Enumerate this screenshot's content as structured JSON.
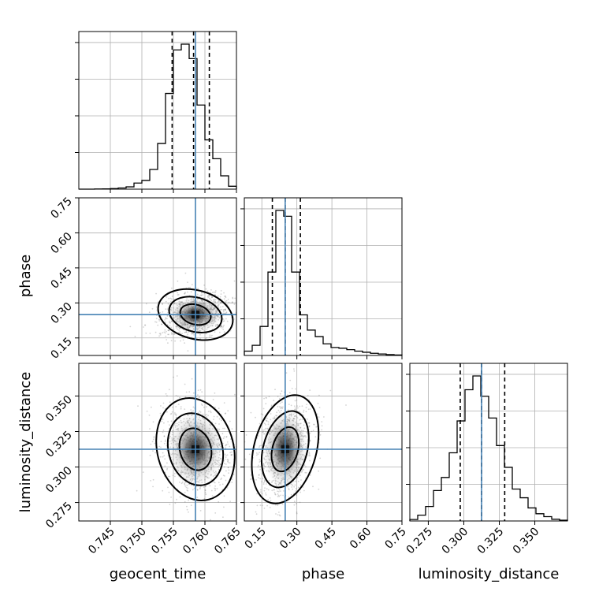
{
  "chart_data": {
    "type": "corner",
    "parameters": [
      "geocent_time",
      "phase",
      "luminosity_distance"
    ],
    "truth": {
      "geocent_time": 0.7585,
      "phase": 0.25,
      "luminosity_distance": 0.3125
    },
    "quantiles": {
      "geocent_time": [
        0.7548,
        0.7582,
        0.7607
      ],
      "phase": [
        0.195,
        0.25,
        0.315
      ],
      "luminosity_distance": [
        0.2975,
        0.3125,
        0.3288
      ]
    },
    "ranges": {
      "geocent_time": [
        0.74,
        0.765
      ],
      "phase": [
        0.075,
        0.75
      ],
      "luminosity_distance": [
        0.262,
        0.373
      ]
    },
    "ticks": {
      "geocent_time": [
        "0.745",
        "0.750",
        "0.755",
        "0.760",
        "0.765"
      ],
      "phase": [
        "0.15",
        "0.30",
        "0.45",
        "0.60",
        "0.75"
      ],
      "luminosity_distance": [
        "0.275",
        "0.300",
        "0.325",
        "0.350"
      ]
    },
    "phase_y_ticks": [
      "0.15",
      "0.30",
      "0.45",
      "0.60",
      "0.75"
    ],
    "ld_y_ticks": [
      "0.275",
      "0.300",
      "0.325",
      "0.350"
    ],
    "hist_1d": {
      "geocent_time": {
        "edges": [
          0.74,
          0.74125,
          0.7425,
          0.74375,
          0.745,
          0.74625,
          0.7475,
          0.74875,
          0.75,
          0.75125,
          0.7525,
          0.75375,
          0.755,
          0.75625,
          0.7575,
          0.75875,
          0.76,
          0.76125,
          0.7625,
          0.76375,
          0.765
        ],
        "counts": [
          0,
          0,
          1,
          2,
          4,
          8,
          16,
          42,
          60,
          136,
          315,
          660,
          960,
          1000,
          900,
          580,
          340,
          210,
          92,
          20
        ]
      },
      "phase": {
        "edges": [
          0.075,
          0.10875,
          0.1425,
          0.17625,
          0.21,
          0.24375,
          0.2775,
          0.31125,
          0.345,
          0.37875,
          0.4125,
          0.44625,
          0.48,
          0.51375,
          0.5475,
          0.58125,
          0.615,
          0.64875,
          0.6825,
          0.71625,
          0.75
        ],
        "counts": [
          30,
          70,
          200,
          575,
          1000,
          960,
          575,
          280,
          175,
          130,
          80,
          55,
          50,
          40,
          30,
          22,
          15,
          10,
          6,
          3
        ]
      },
      "luminosity_distance": {
        "edges": [
          0.262,
          0.26755,
          0.2731,
          0.27865,
          0.2842,
          0.28975,
          0.2953,
          0.30085,
          0.3064,
          0.31195,
          0.3175,
          0.32305,
          0.3286,
          0.33415,
          0.3397,
          0.34525,
          0.3508,
          0.35635,
          0.3619,
          0.36745,
          0.373
        ],
        "counts": [
          10,
          40,
          100,
          210,
          300,
          470,
          690,
          905,
          1000,
          860,
          710,
          520,
          370,
          220,
          160,
          90,
          50,
          30,
          12,
          5
        ]
      }
    }
  }
}
